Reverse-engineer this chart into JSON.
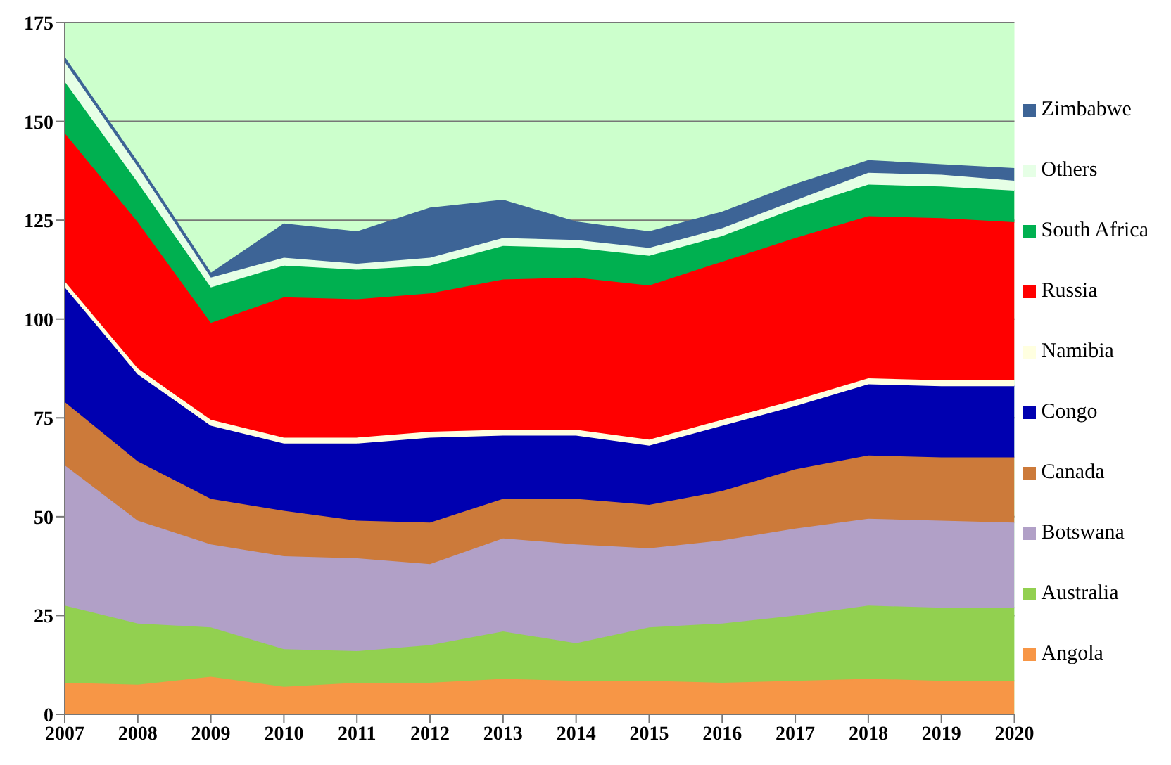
{
  "chart_data": {
    "type": "area",
    "stacked": true,
    "x": [
      2007,
      2008,
      2009,
      2010,
      2011,
      2012,
      2013,
      2014,
      2015,
      2016,
      2017,
      2018,
      2019,
      2020
    ],
    "xlim": [
      2007,
      2020
    ],
    "xticks": [
      2007,
      2008,
      2009,
      2010,
      2011,
      2012,
      2013,
      2014,
      2015,
      2016,
      2017,
      2018,
      2019,
      2020
    ],
    "ylim": [
      0,
      175
    ],
    "yticks": [
      0,
      25,
      50,
      75,
      100,
      125,
      150,
      175
    ],
    "grid": "y",
    "legend": "right",
    "series": [
      {
        "name": "Angola",
        "color": "#f79646",
        "values": [
          8,
          7.5,
          9.5,
          7,
          8,
          8,
          9,
          8.5,
          8.5,
          8,
          8.5,
          9,
          8.5,
          8.5
        ]
      },
      {
        "name": "Australia",
        "color": "#92d050",
        "values": [
          19.5,
          15.5,
          12.5,
          9.5,
          8,
          9.5,
          12,
          9.5,
          13.5,
          15,
          16.5,
          18.5,
          18.5,
          18.5
        ]
      },
      {
        "name": "Botswana",
        "color": "#b1a0c7",
        "values": [
          35.5,
          26,
          21,
          23.5,
          23.5,
          20.5,
          23.5,
          25,
          20,
          21,
          22,
          22,
          22,
          21.5
        ]
      },
      {
        "name": "Canada",
        "color": "#cc7a3a",
        "values": [
          16,
          15,
          11.5,
          11.5,
          9.5,
          10.5,
          10,
          11.5,
          11,
          12.5,
          15,
          16,
          16,
          16.5
        ]
      },
      {
        "name": "Congo",
        "color": "#0000b0",
        "values": [
          29,
          22,
          18.5,
          17,
          19.5,
          21.5,
          16,
          16,
          15,
          16.5,
          16,
          18,
          18,
          18
        ]
      },
      {
        "name": "Namibia",
        "color": "#ffffe0",
        "values": [
          1.5,
          1.5,
          1.5,
          1.5,
          1.5,
          1.5,
          1.5,
          1.5,
          1.5,
          1.5,
          1.5,
          1.5,
          1.5,
          1.5
        ]
      },
      {
        "name": "Russia",
        "color": "#ff0000",
        "values": [
          37.5,
          37,
          24.5,
          35.5,
          35,
          35,
          38,
          38.5,
          39,
          40,
          41,
          41,
          41,
          40
        ]
      },
      {
        "name": "South Africa",
        "color": "#00b050",
        "values": [
          13,
          10,
          9,
          8,
          7.5,
          7,
          8.5,
          7.5,
          7.5,
          6.5,
          7.5,
          8,
          8,
          8
        ]
      },
      {
        "name": "Others",
        "color": "#e6ffe6",
        "values": [
          5,
          4,
          2.5,
          2,
          1.5,
          2,
          2,
          2,
          2,
          2,
          2,
          3,
          3,
          2.5
        ]
      },
      {
        "name": "Zimbabwe",
        "color": "#3d6496",
        "values": [
          1,
          1,
          1,
          8.5,
          8,
          12.5,
          9.5,
          4.5,
          4,
          4,
          4,
          3,
          2.5,
          3
        ]
      }
    ]
  }
}
